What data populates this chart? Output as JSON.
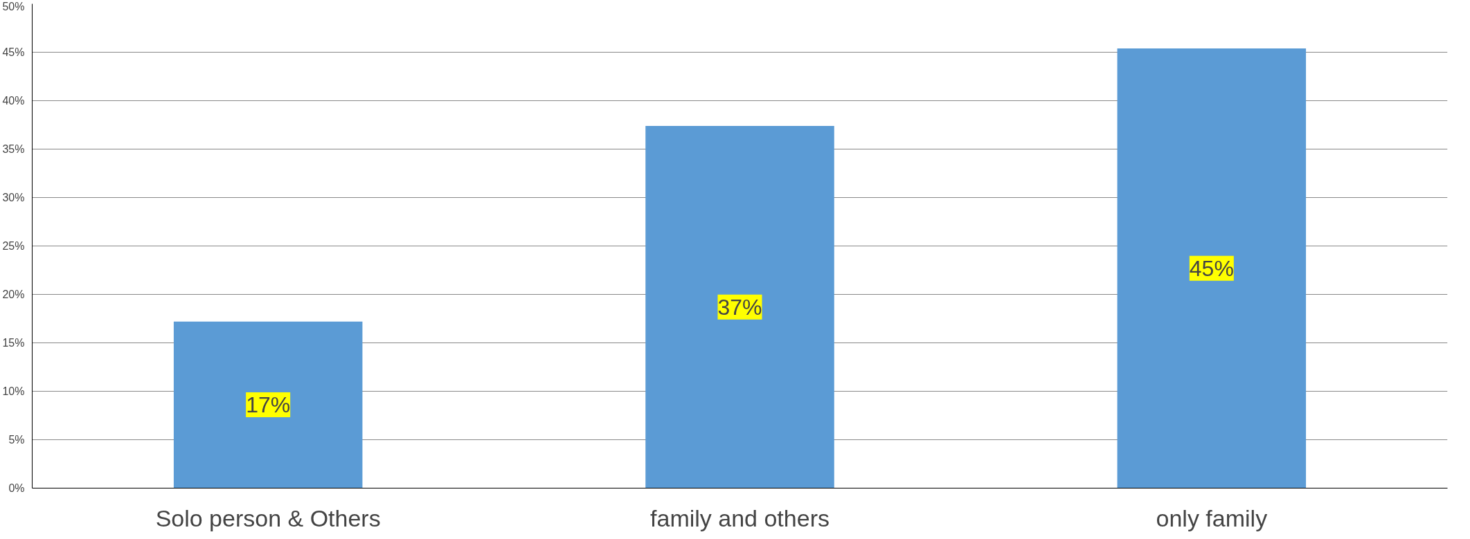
{
  "chart_data": {
    "type": "bar",
    "categories": [
      "Solo person & Others",
      "family and others",
      "only family"
    ],
    "values": [
      17.2,
      37.4,
      45.4
    ],
    "value_labels": [
      "17%",
      "37%",
      "45%"
    ],
    "color": "#5b9bd5",
    "ylim": [
      0,
      50
    ],
    "yticks": [
      {
        "value": 0,
        "label": "0%"
      },
      {
        "value": 5,
        "label": "5%"
      },
      {
        "value": 10,
        "label": "10%"
      },
      {
        "value": 15,
        "label": "15%"
      },
      {
        "value": 20,
        "label": "20%"
      },
      {
        "value": 25,
        "label": "25%"
      },
      {
        "value": 30,
        "label": "30%"
      },
      {
        "value": 35,
        "label": "35%"
      },
      {
        "value": 40,
        "label": "40%"
      },
      {
        "value": 45,
        "label": "45%"
      },
      {
        "value": 50,
        "label": "50%"
      }
    ],
    "grid": "y"
  }
}
